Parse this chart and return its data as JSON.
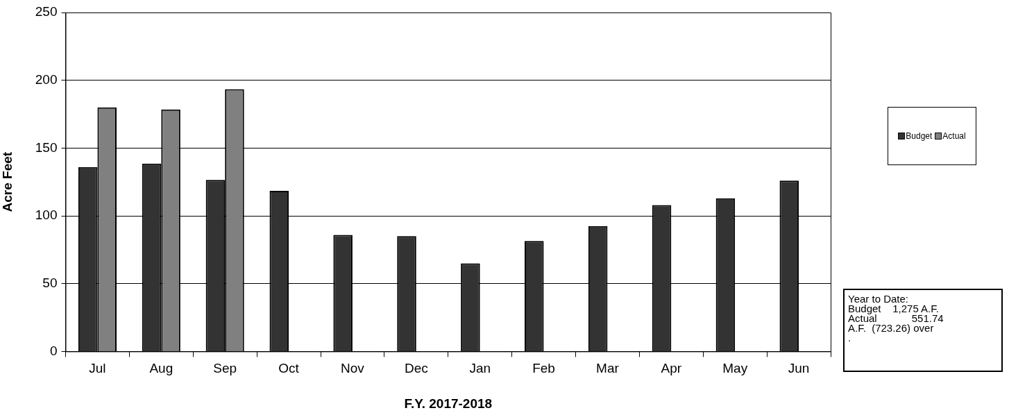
{
  "chart_data": {
    "type": "bar",
    "xlabel": "F.Y. 2017-2018",
    "ylabel": "Acre Feet",
    "categories": [
      "Jul",
      "Aug",
      "Sep",
      "Oct",
      "Nov",
      "Dec",
      "Jan",
      "Feb",
      "Mar",
      "Apr",
      "May",
      "Jun"
    ],
    "series": [
      {
        "name": "Budget",
        "color": "#333333",
        "values": [
          136,
          138.5,
          126.5,
          118.5,
          86,
          85,
          65,
          81.5,
          92.5,
          108,
          113,
          126
        ]
      },
      {
        "name": "Actual",
        "color": "#808080",
        "values": [
          180,
          178.5,
          193.5,
          null,
          null,
          null,
          null,
          null,
          null,
          null,
          null,
          null
        ]
      }
    ],
    "ylim": [
      0,
      250
    ],
    "yticks": [
      0,
      50,
      100,
      150,
      200,
      250
    ],
    "grid": "y",
    "legend": "right",
    "annotations": [
      "Year to Date:\nBudget    1,275 A.F.\nActual            551.74\nA.F.  (723.26) over\n."
    ]
  }
}
